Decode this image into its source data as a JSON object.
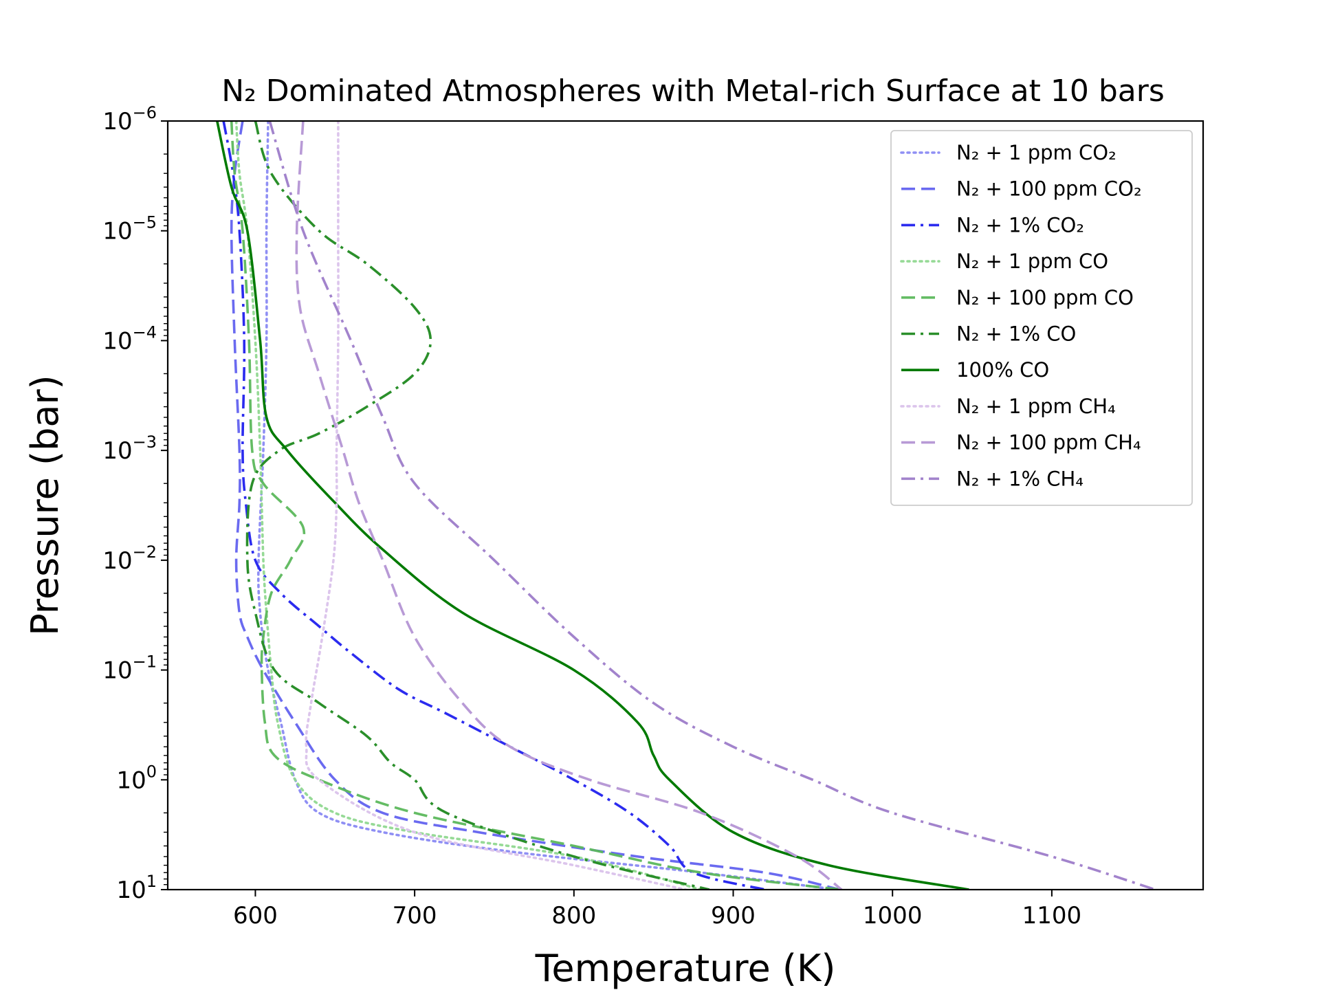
{
  "chart_data": {
    "type": "line",
    "title": "N₂ Dominated Atmospheres with Metal-rich Surface at 10 bars",
    "xlabel": "Temperature (K)",
    "ylabel": "Pressure (bar)",
    "xlim": [
      545,
      1195
    ],
    "ylim": [
      10,
      1e-06
    ],
    "yscale": "log",
    "y_inverted": true,
    "xticks": [
      600,
      700,
      800,
      900,
      1000,
      1100
    ],
    "xtick_labels": [
      "600",
      "700",
      "800",
      "900",
      "1000",
      "1100"
    ],
    "yticks": [
      1e-06,
      1e-05,
      0.0001,
      0.001,
      0.01,
      0.1,
      1,
      10
    ],
    "ytick_labels": [
      {
        "base": "10",
        "exp": "−6"
      },
      {
        "base": "10",
        "exp": "−5"
      },
      {
        "base": "10",
        "exp": "−4"
      },
      {
        "base": "10",
        "exp": "−3"
      },
      {
        "base": "10",
        "exp": "−2"
      },
      {
        "base": "10",
        "exp": "−1"
      },
      {
        "base": "10",
        "exp": "0"
      },
      {
        "base": "10",
        "exp": "1"
      }
    ],
    "legend_position": "top-right",
    "series": [
      {
        "name": "N₂ + 1 ppm CO₂",
        "color": "#7b7bf2",
        "style": "dotted",
        "opacity": 0.85,
        "x": [
          608,
          607,
          607,
          605,
          602,
          603,
          608,
          616,
          625,
          640,
          680,
          760,
          880,
          965
        ],
        "y": [
          1e-06,
          1e-05,
          0.0001,
          0.001,
          0.01,
          0.03,
          0.1,
          0.3,
          1,
          2,
          3,
          4.5,
          7,
          10
        ]
      },
      {
        "name": "N₂ + 100 ppm CO₂",
        "color": "#5a5aee",
        "style": "dashed",
        "opacity": 0.9,
        "x": [
          592,
          587,
          585,
          587,
          590,
          590,
          588,
          590,
          595,
          605,
          625,
          650,
          680,
          740,
          840,
          920,
          967
        ],
        "y": [
          1e-06,
          3e-06,
          1e-05,
          0.0001,
          0.001,
          0.003,
          0.01,
          0.03,
          0.05,
          0.1,
          0.3,
          1,
          2,
          3,
          5,
          7,
          10
        ]
      },
      {
        "name": "N₂ + 1% CO₂",
        "color": "#2b2bef",
        "style": "dashdot",
        "opacity": 1,
        "x": [
          580,
          586,
          590,
          593,
          592,
          594,
          600,
          616,
          640,
          660,
          690,
          720,
          760,
          800,
          835,
          860,
          875,
          920
        ],
        "y": [
          1e-06,
          3e-06,
          1e-05,
          0.0001,
          0.001,
          0.003,
          0.01,
          0.02,
          0.04,
          0.07,
          0.15,
          0.25,
          0.5,
          1,
          2,
          4,
          7,
          10
        ]
      },
      {
        "name": "N₂ + 1 ppm CO",
        "color": "#90d890",
        "style": "dotted",
        "opacity": 0.95,
        "x": [
          588,
          590,
          595,
          600,
          603,
          605,
          607,
          610,
          614,
          625,
          650,
          700,
          800,
          880
        ],
        "y": [
          1e-06,
          3e-06,
          1e-05,
          0.0001,
          0.001,
          0.01,
          0.03,
          0.1,
          0.3,
          1,
          2,
          3,
          5,
          10
        ]
      },
      {
        "name": "N₂ + 100 ppm CO",
        "color": "#5cb85c",
        "style": "dashed",
        "opacity": 0.95,
        "x": [
          585,
          587,
          592,
          596,
          598,
          605,
          630,
          622,
          610,
          605,
          604,
          606,
          612,
          640,
          700,
          800,
          880,
          968
        ],
        "y": [
          1e-06,
          3e-06,
          1e-05,
          0.0001,
          0.001,
          0.002,
          0.005,
          0.01,
          0.02,
          0.05,
          0.1,
          0.3,
          0.6,
          1,
          2,
          4,
          7,
          10
        ]
      },
      {
        "name": "N₂ + 1% CO",
        "color": "#2a8f2a",
        "style": "dashdot",
        "opacity": 1,
        "x": [
          600,
          610,
          640,
          670,
          700,
          710,
          700,
          670,
          640,
          615,
          598,
          595,
          600,
          612,
          640,
          670,
          685,
          700,
          720,
          800,
          885
        ],
        "y": [
          1e-06,
          3e-06,
          1e-05,
          2e-05,
          5e-05,
          0.0001,
          0.0002,
          0.0004,
          0.0007,
          0.001,
          0.002,
          0.01,
          0.03,
          0.1,
          0.2,
          0.4,
          0.7,
          1,
          2,
          5,
          10
        ]
      },
      {
        "name": "100% CO",
        "color": "#007a00",
        "style": "solid",
        "opacity": 1,
        "x": [
          576,
          585,
          595,
          603,
          607,
          620,
          650,
          680,
          730,
          800,
          840,
          850,
          860,
          900,
          960,
          1048
        ],
        "y": [
          1e-06,
          4e-06,
          1e-05,
          0.0001,
          0.0005,
          0.001,
          0.003,
          0.008,
          0.03,
          0.1,
          0.3,
          0.6,
          1,
          3,
          6,
          10
        ]
      },
      {
        "name": "N₂ + 1 ppm CH₄",
        "color": "#dcc5ec",
        "style": "dotted",
        "opacity": 1,
        "x": [
          652,
          652,
          652,
          651,
          651,
          649,
          642,
          635,
          632,
          640,
          700,
          800,
          870
        ],
        "y": [
          1e-06,
          1e-05,
          0.0001,
          0.001,
          0.003,
          0.01,
          0.05,
          0.2,
          0.5,
          1,
          3,
          6,
          10
        ]
      },
      {
        "name": "N₂ + 100 ppm CH₄",
        "color": "#b89ad6",
        "style": "dashed",
        "opacity": 1,
        "x": [
          630,
          626,
          628,
          640,
          655,
          665,
          680,
          700,
          730,
          760,
          810,
          880,
          940,
          968
        ],
        "y": [
          1e-06,
          1e-05,
          5e-05,
          0.0002,
          0.001,
          0.003,
          0.01,
          0.05,
          0.2,
          0.5,
          1,
          2,
          5,
          10
        ]
      },
      {
        "name": "N₂ + 1% CH₄",
        "color": "#a283cc",
        "style": "dashdot",
        "opacity": 1,
        "x": [
          609,
          630,
          660,
          680,
          700,
          750,
          800,
          850,
          900,
          950,
          1000,
          1100,
          1165
        ],
        "y": [
          1e-06,
          1e-05,
          0.0001,
          0.0005,
          0.002,
          0.01,
          0.05,
          0.2,
          0.5,
          1,
          2,
          5,
          10
        ]
      }
    ]
  }
}
